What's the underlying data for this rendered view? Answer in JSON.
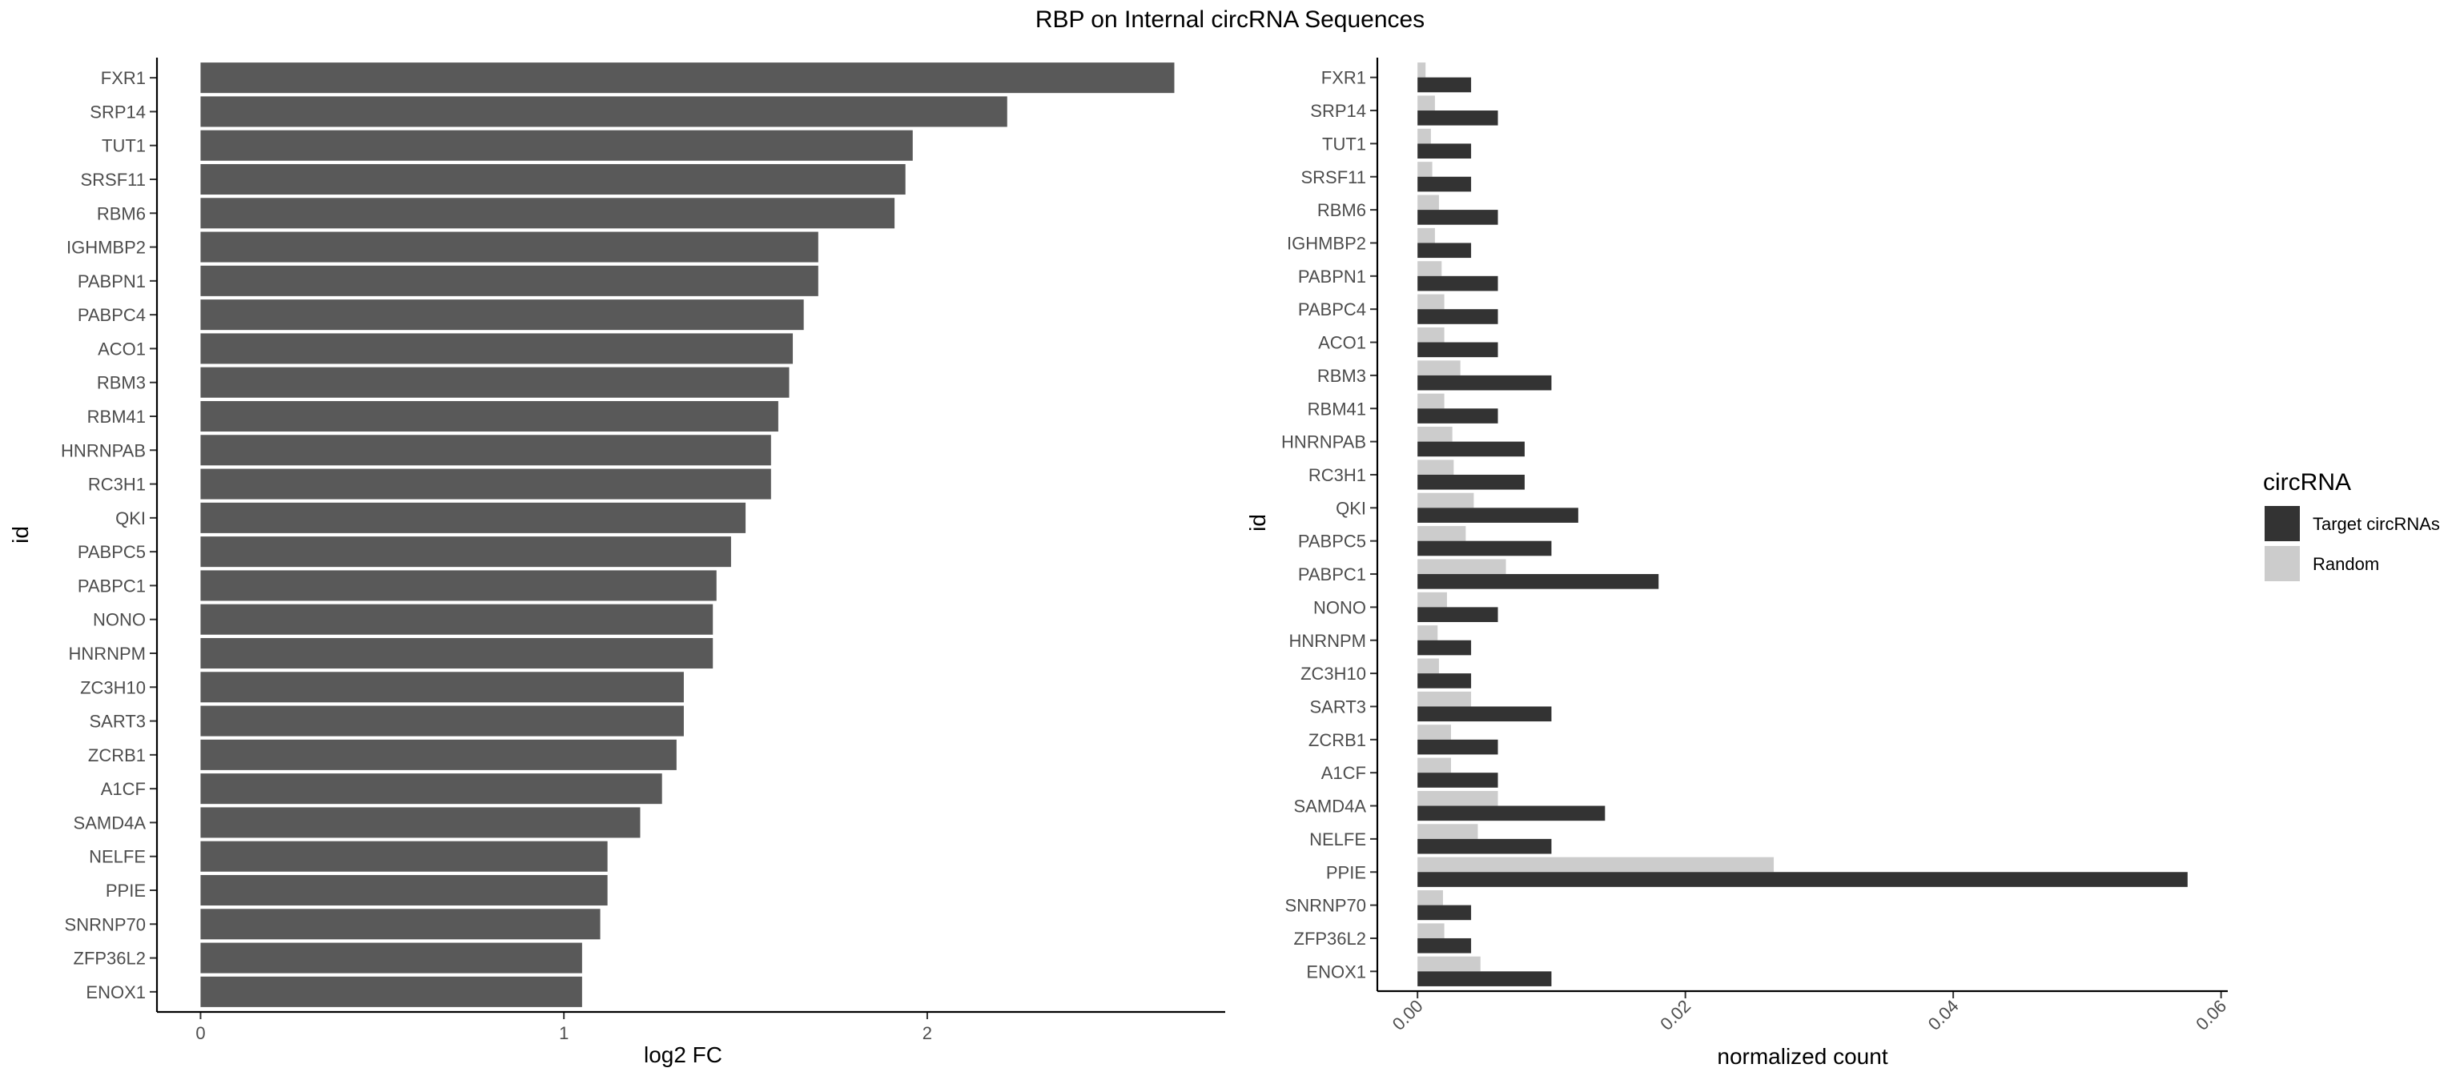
{
  "title": "RBP on Internal circRNA Sequences",
  "chart_data": [
    {
      "type": "bar",
      "orientation": "horizontal",
      "xlabel": "log2 FC",
      "ylabel": "id",
      "xlim": [
        -0.12,
        2.82
      ],
      "xticks": [
        0,
        1,
        2
      ],
      "bar_color": "#595959",
      "categories": [
        "FXR1",
        "SRP14",
        "TUT1",
        "SRSF11",
        "RBM6",
        "IGHMBP2",
        "PABPN1",
        "PABPC4",
        "ACO1",
        "RBM3",
        "RBM41",
        "HNRNPAB",
        "RC3H1",
        "QKI",
        "PABPC5",
        "PABPC1",
        "NONO",
        "HNRNPM",
        "ZC3H10",
        "SART3",
        "ZCRB1",
        "A1CF",
        "SAMD4A",
        "NELFE",
        "PPIE",
        "SNRNP70",
        "ZFP36L2",
        "ENOX1"
      ],
      "values": [
        2.68,
        2.22,
        1.96,
        1.94,
        1.91,
        1.7,
        1.7,
        1.66,
        1.63,
        1.62,
        1.59,
        1.57,
        1.57,
        1.5,
        1.46,
        1.42,
        1.41,
        1.41,
        1.33,
        1.33,
        1.31,
        1.27,
        1.21,
        1.12,
        1.12,
        1.1,
        1.05,
        1.05
      ]
    },
    {
      "type": "bar",
      "orientation": "horizontal",
      "grouped": true,
      "xlabel": "normalized count",
      "ylabel": "id",
      "xlim": [
        -0.003,
        0.0605
      ],
      "xticks": [
        0.0,
        0.02,
        0.04,
        0.06
      ],
      "xtick_labels": [
        "0.00",
        "0.02",
        "0.04",
        "0.06"
      ],
      "xtick_rotation": -45,
      "categories": [
        "FXR1",
        "SRP14",
        "TUT1",
        "SRSF11",
        "RBM6",
        "IGHMBP2",
        "PABPN1",
        "PABPC4",
        "ACO1",
        "RBM3",
        "RBM41",
        "HNRNPAB",
        "RC3H1",
        "QKI",
        "PABPC5",
        "PABPC1",
        "NONO",
        "HNRNPM",
        "ZC3H10",
        "SART3",
        "ZCRB1",
        "A1CF",
        "SAMD4A",
        "NELFE",
        "PPIE",
        "SNRNP70",
        "ZFP36L2",
        "ENOX1"
      ],
      "series": [
        {
          "name": "Target circRNAs",
          "color": "#333333",
          "values": [
            0.004,
            0.006,
            0.004,
            0.004,
            0.006,
            0.004,
            0.006,
            0.006,
            0.006,
            0.01,
            0.006,
            0.008,
            0.008,
            0.012,
            0.01,
            0.018,
            0.006,
            0.004,
            0.004,
            0.01,
            0.006,
            0.006,
            0.014,
            0.01,
            0.0575,
            0.004,
            0.004,
            0.01
          ]
        },
        {
          "name": "Random",
          "color": "#cccccc",
          "values": [
            0.0006,
            0.0013,
            0.001,
            0.0011,
            0.0016,
            0.0013,
            0.0018,
            0.002,
            0.002,
            0.0032,
            0.002,
            0.0026,
            0.0027,
            0.0042,
            0.0036,
            0.0066,
            0.0022,
            0.0015,
            0.0016,
            0.004,
            0.0025,
            0.0025,
            0.006,
            0.0045,
            0.0266,
            0.0019,
            0.002,
            0.0047
          ]
        }
      ],
      "legend": {
        "title": "circRNA",
        "position": "right"
      }
    }
  ]
}
